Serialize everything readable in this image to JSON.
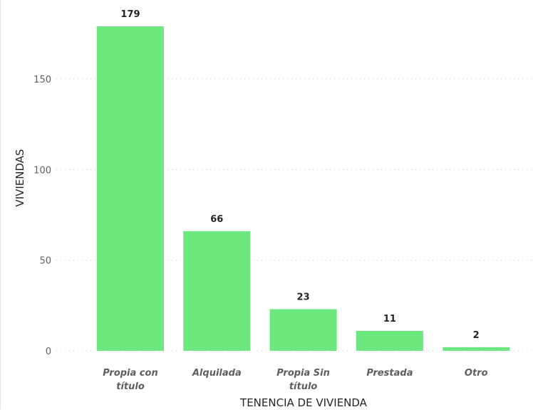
{
  "chart_data": {
    "type": "bar",
    "categories": [
      "Propia con título",
      "Alquilada",
      "Propia Sin título",
      "Prestada",
      "Otro"
    ],
    "category_label_lines": [
      [
        "Propia con",
        "título"
      ],
      [
        "Alquilada"
      ],
      [
        "Propia Sin",
        "título"
      ],
      [
        "Prestada"
      ],
      [
        "Otro"
      ]
    ],
    "values": [
      179,
      66,
      23,
      11,
      2
    ],
    "data_labels": [
      "179",
      "66",
      "23",
      "11",
      "2"
    ],
    "title": "",
    "xlabel": "TENENCIA DE VIVIENDA",
    "ylabel": "VIVIENDAS",
    "ylim": [
      0,
      179
    ],
    "yticks": [
      0,
      50,
      100,
      150
    ],
    "ytick_labels": [
      "0",
      "50",
      "100",
      "150"
    ],
    "grid": true,
    "bar_color": "#6ce87f"
  }
}
